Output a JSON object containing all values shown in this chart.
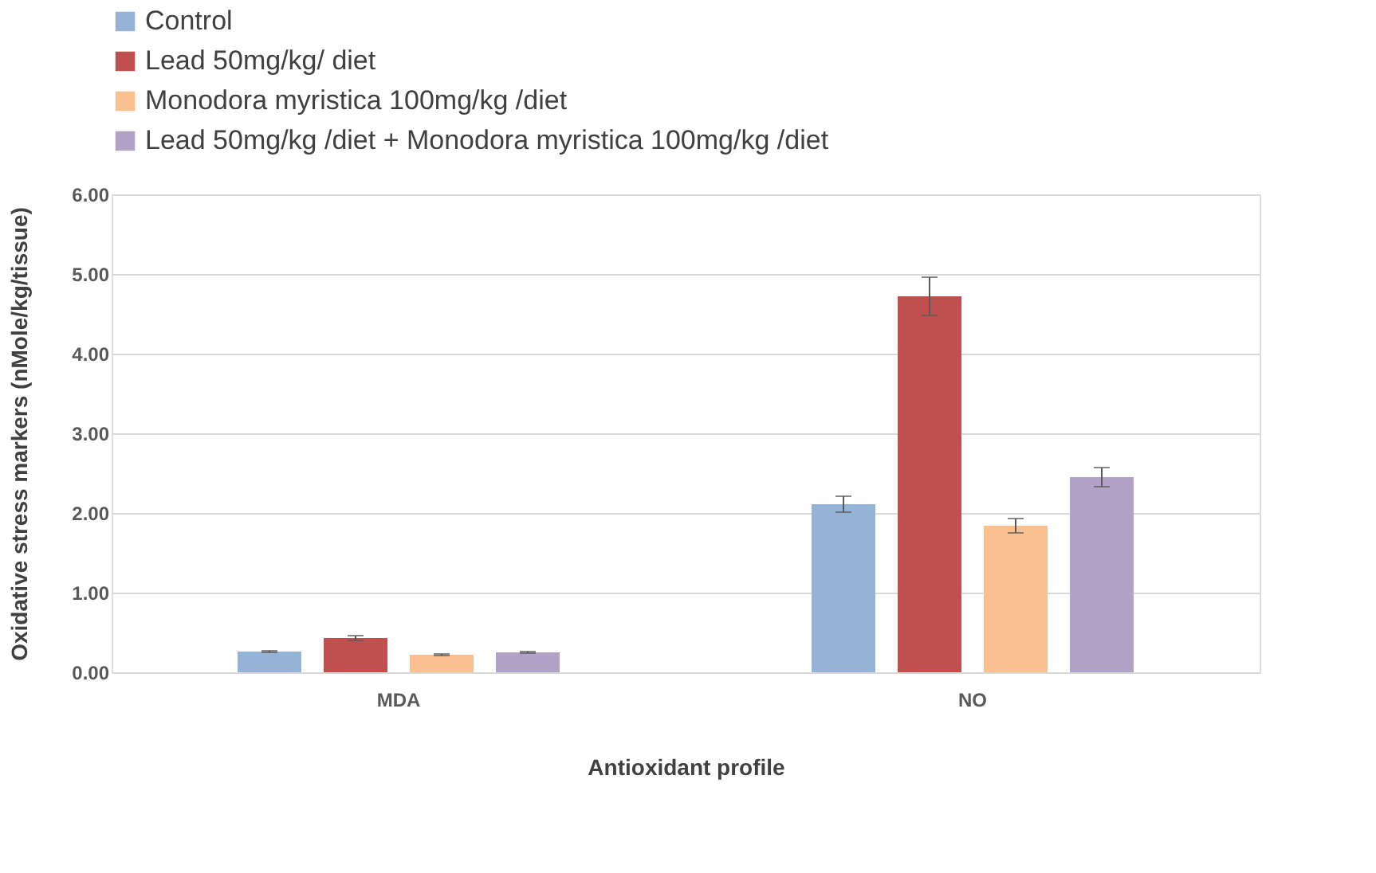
{
  "chart_data": {
    "type": "bar",
    "xlabel": "Antioxidant profile",
    "ylabel": "Oxidative stress markers (nMole/kg/tissue)",
    "categories": [
      "MDA",
      "NO"
    ],
    "series": [
      {
        "name": "Control",
        "color": "#95b3d7",
        "values": [
          0.26,
          2.11
        ],
        "errors": [
          0.01,
          0.1
        ]
      },
      {
        "name": "Lead 50mg/kg/ diet",
        "color": "#c0504d",
        "values": [
          0.43,
          4.72
        ],
        "errors": [
          0.03,
          0.24
        ]
      },
      {
        "name": "Monodora myristica 100mg/kg /diet",
        "color": "#fac090",
        "values": [
          0.22,
          1.84
        ],
        "errors": [
          0.01,
          0.09
        ]
      },
      {
        "name": "Lead 50mg/kg /diet + Monodora myristica 100mg/kg /diet",
        "color": "#b2a2c7",
        "values": [
          0.25,
          2.45
        ],
        "errors": [
          0.01,
          0.12
        ]
      }
    ],
    "ylim": [
      0,
      6
    ],
    "yticks": [
      {
        "value": 0,
        "label": "0.00"
      },
      {
        "value": 1,
        "label": "1.00"
      },
      {
        "value": 2,
        "label": "2.00"
      },
      {
        "value": 3,
        "label": "3.00"
      },
      {
        "value": 4,
        "label": "4.00"
      },
      {
        "value": 5,
        "label": "5.00"
      },
      {
        "value": 6,
        "label": "6.00"
      }
    ],
    "grid": "y",
    "legend": "top left"
  }
}
